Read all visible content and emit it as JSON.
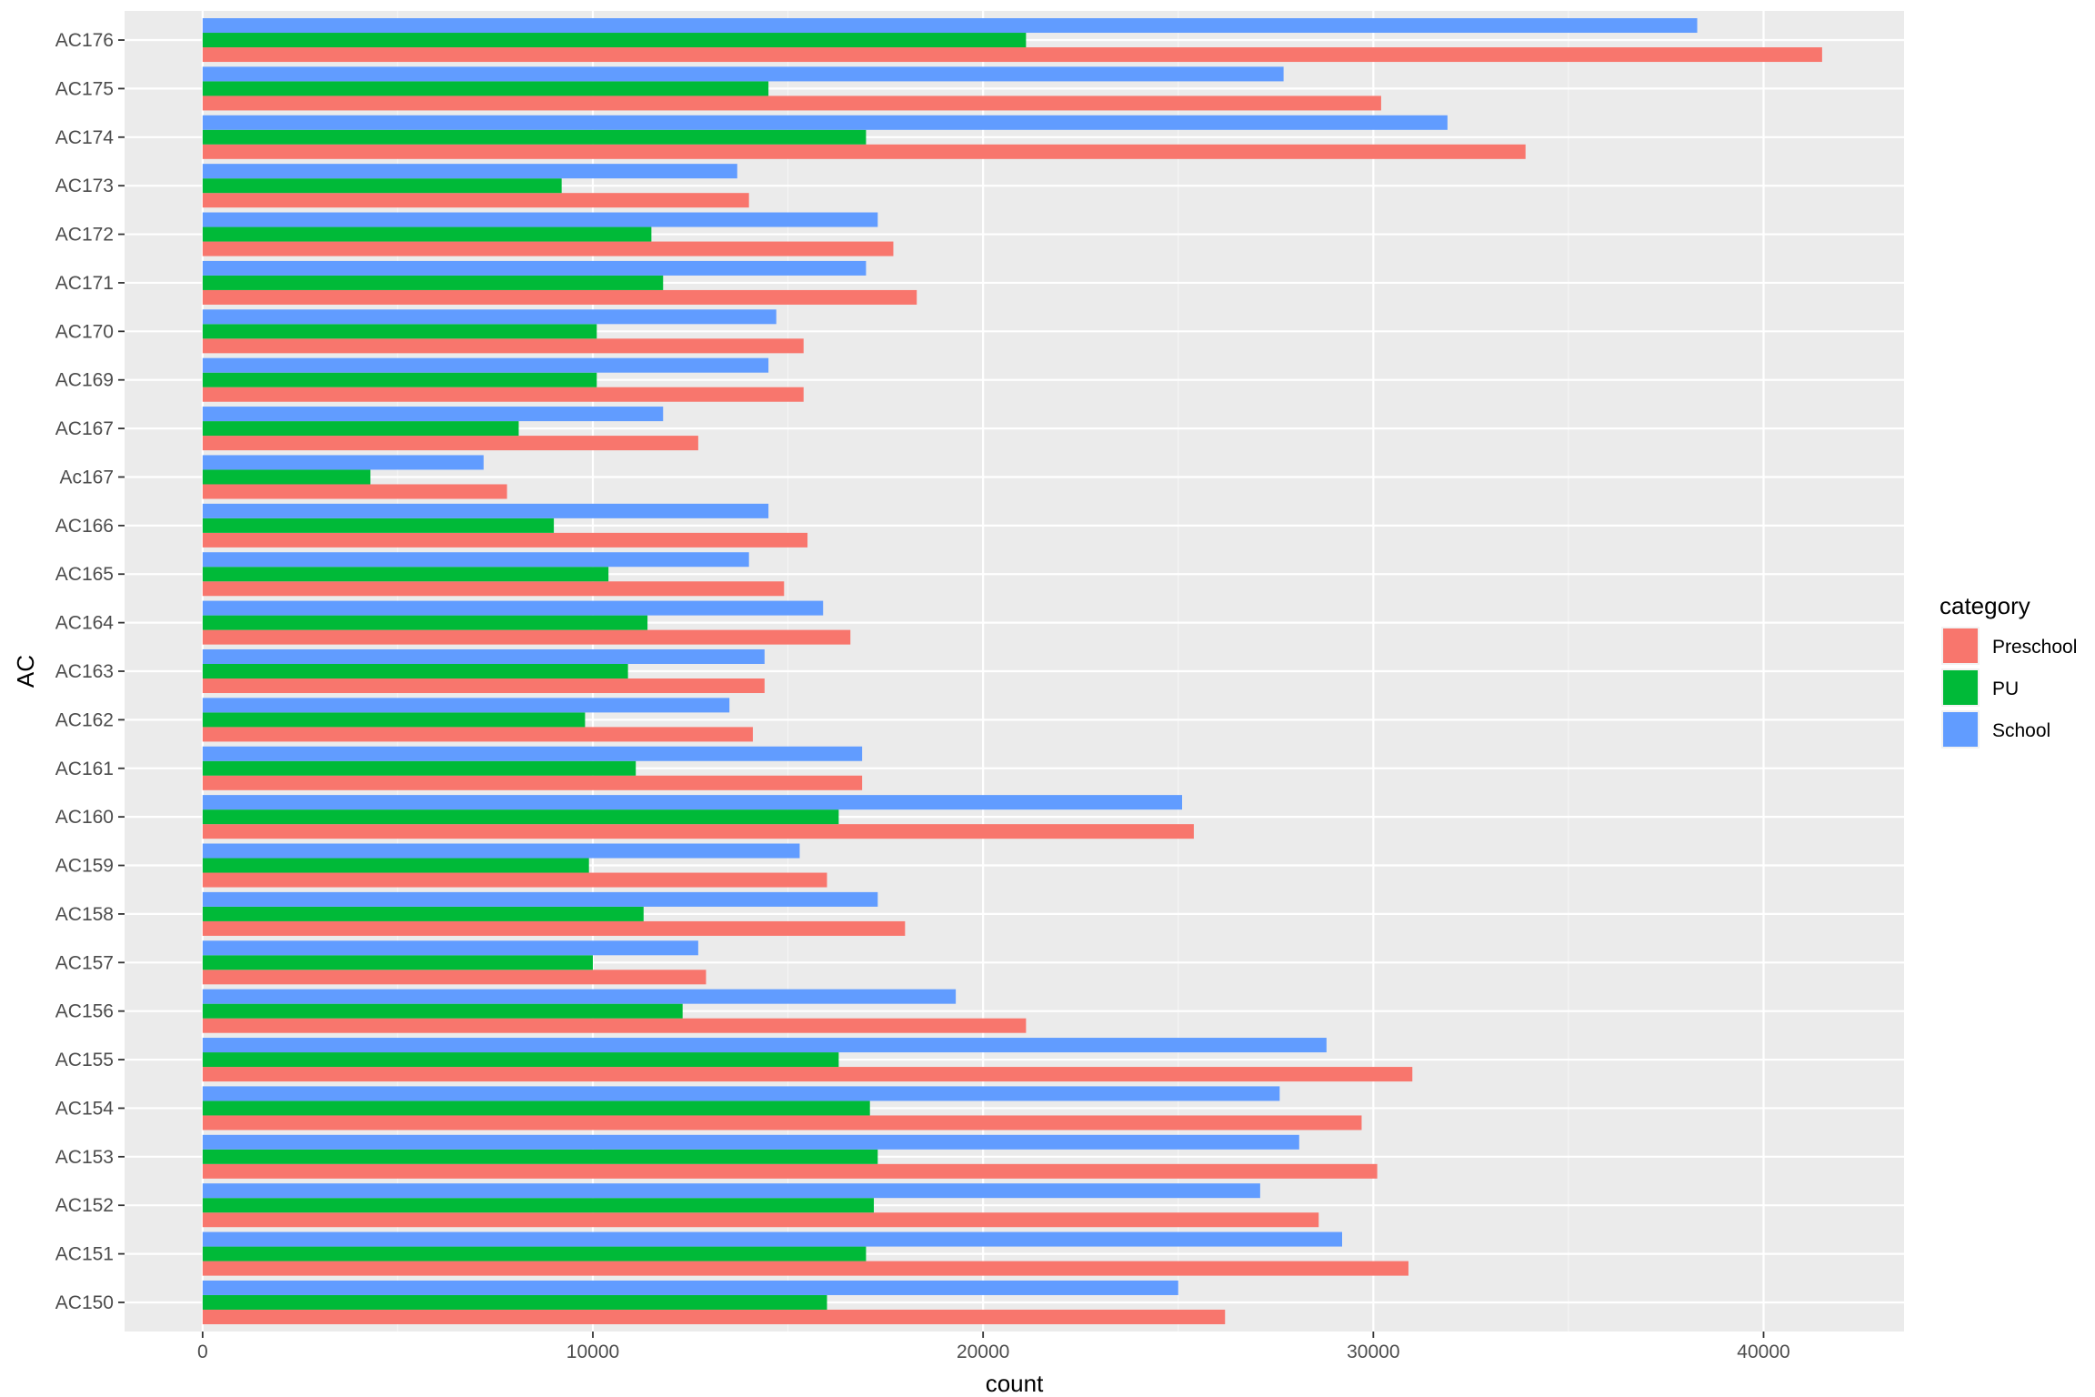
{
  "chart_data": {
    "type": "bar",
    "orientation": "horizontal",
    "categories": [
      "AC150",
      "AC151",
      "AC152",
      "AC153",
      "AC154",
      "AC155",
      "AC156",
      "AC157",
      "AC158",
      "AC159",
      "AC160",
      "AC161",
      "AC162",
      "AC163",
      "AC164",
      "AC165",
      "AC166",
      "Ac167",
      "AC167",
      "AC169",
      "AC170",
      "AC171",
      "AC172",
      "AC173",
      "AC174",
      "AC175",
      "AC176"
    ],
    "series": [
      {
        "name": "Preschool",
        "color": "#F8766D",
        "values": [
          26200,
          30900,
          28600,
          30100,
          29700,
          31000,
          21100,
          12900,
          18000,
          16000,
          25400,
          16900,
          14100,
          14400,
          16600,
          14900,
          15500,
          7800,
          12700,
          15400,
          15400,
          18300,
          17700,
          14000,
          33900,
          30200,
          41500
        ]
      },
      {
        "name": "PU",
        "color": "#00BA38",
        "values": [
          16000,
          17000,
          17200,
          17300,
          17100,
          16300,
          12300,
          10000,
          11300,
          9900,
          16300,
          11100,
          9800,
          10900,
          11400,
          10400,
          9000,
          4300,
          8100,
          10100,
          10100,
          11800,
          11500,
          9200,
          17000,
          14500,
          21100
        ]
      },
      {
        "name": "School",
        "color": "#619CFF",
        "values": [
          25000,
          29200,
          27100,
          28100,
          27600,
          28800,
          19300,
          12700,
          17300,
          15300,
          25100,
          16900,
          13500,
          14400,
          15900,
          14000,
          14500,
          7200,
          11800,
          14500,
          14700,
          17000,
          17300,
          13700,
          31900,
          27700,
          38300
        ]
      }
    ],
    "xlabel": "count",
    "ylabel": "AC",
    "xlim": [
      -2000,
      43600
    ],
    "xticks": [
      0,
      10000,
      20000,
      30000,
      40000
    ],
    "xtick_labels": [
      "0",
      "10000",
      "20000",
      "30000",
      "40000"
    ],
    "legend": {
      "title": "category",
      "position": "right"
    },
    "grid": true,
    "panel_background": "#EBEBEB",
    "grid_color": "#FFFFFF"
  }
}
